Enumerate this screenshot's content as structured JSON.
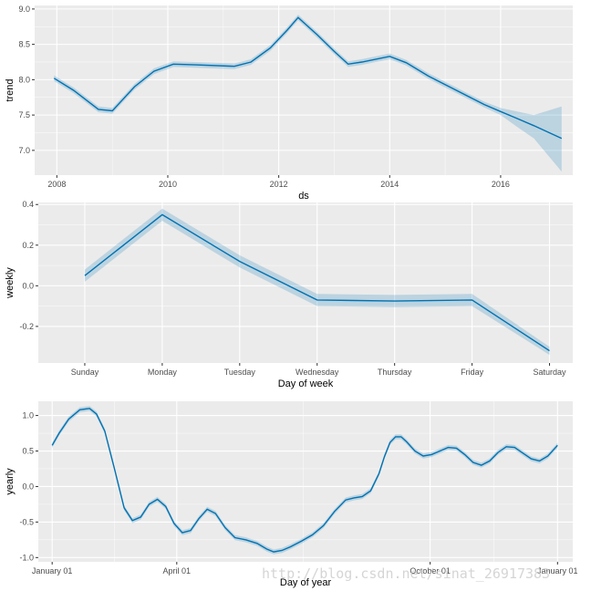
{
  "colors": {
    "panel": "#ebebeb",
    "grid": "#ffffff",
    "line": "#0072b2",
    "band": "#0072b2"
  },
  "watermark": "http://blog.csdn.net/sinat_26917383",
  "chart_data": [
    {
      "type": "line",
      "ylabel": "trend",
      "xlabel": "ds",
      "xlim": [
        2007.6,
        2017.3
      ],
      "ylim": [
        6.65,
        9.05
      ],
      "xticks": [
        2008,
        2010,
        2012,
        2014,
        2016
      ],
      "xtick_labels": [
        "2008",
        "2010",
        "2012",
        "2014",
        "2016"
      ],
      "yticks": [
        7.0,
        7.5,
        8.0,
        8.5,
        9.0
      ],
      "ytick_labels": [
        "7.0",
        "7.5",
        "8.0",
        "8.5",
        "9.0"
      ],
      "x": [
        2007.95,
        2008.3,
        2008.75,
        2009.0,
        2009.4,
        2009.75,
        2010.1,
        2010.5,
        2011.2,
        2011.5,
        2011.85,
        2012.15,
        2012.35,
        2012.7,
        2013.0,
        2013.25,
        2013.5,
        2014.0,
        2014.3,
        2014.7,
        2015.2,
        2015.7,
        2016.0,
        2016.3,
        2016.6,
        2017.1
      ],
      "y": [
        8.02,
        7.85,
        7.58,
        7.56,
        7.9,
        8.12,
        8.22,
        8.21,
        8.19,
        8.25,
        8.45,
        8.7,
        8.88,
        8.63,
        8.4,
        8.22,
        8.25,
        8.33,
        8.24,
        8.05,
        7.85,
        7.65,
        7.55,
        7.45,
        7.35,
        7.17
      ],
      "lower": [
        7.98,
        7.81,
        7.54,
        7.52,
        7.86,
        8.08,
        8.18,
        8.17,
        8.15,
        8.21,
        8.41,
        8.66,
        8.84,
        8.59,
        8.36,
        8.18,
        8.21,
        8.29,
        8.2,
        8.01,
        7.81,
        7.61,
        7.5,
        7.33,
        7.17,
        6.7
      ],
      "upper": [
        8.06,
        7.89,
        7.62,
        7.6,
        7.94,
        8.16,
        8.26,
        8.25,
        8.23,
        8.29,
        8.49,
        8.74,
        8.92,
        8.67,
        8.44,
        8.26,
        8.29,
        8.37,
        8.28,
        8.09,
        7.89,
        7.69,
        7.6,
        7.55,
        7.5,
        7.62
      ]
    },
    {
      "type": "line",
      "ylabel": "weekly",
      "xlabel": "Day of week",
      "categories": [
        "Sunday",
        "Monday",
        "Tuesday",
        "Wednesday",
        "Thursday",
        "Friday",
        "Saturday"
      ],
      "xlim": [
        -0.6,
        6.3
      ],
      "ylim": [
        -0.38,
        0.41
      ],
      "yticks": [
        -0.2,
        0.0,
        0.2,
        0.4
      ],
      "ytick_labels": [
        "-0.2",
        "0.0",
        "0.2",
        "0.4"
      ],
      "x": [
        0,
        1,
        2,
        3,
        4,
        5,
        6
      ],
      "y": [
        0.05,
        0.35,
        0.12,
        -0.07,
        -0.075,
        -0.07,
        -0.32
      ],
      "lower": [
        0.02,
        0.32,
        0.09,
        -0.1,
        -0.105,
        -0.1,
        -0.34
      ],
      "upper": [
        0.08,
        0.38,
        0.15,
        -0.04,
        -0.045,
        -0.04,
        -0.3
      ]
    },
    {
      "type": "line",
      "ylabel": "yearly",
      "xlabel": "Day of year",
      "xlim": [
        -10,
        376
      ],
      "ylim": [
        -1.06,
        1.2
      ],
      "xticks": [
        0,
        90,
        273,
        365
      ],
      "xtick_labels": [
        "January 01",
        "April 01",
        "October 01",
        "January 01"
      ],
      "yticks": [
        -1.0,
        -0.5,
        0.0,
        0.5,
        1.0
      ],
      "ytick_labels": [
        "-1.0",
        "-0.5",
        "0.0",
        "0.5",
        "1.0"
      ],
      "x": [
        0,
        5,
        12,
        20,
        27,
        32,
        38,
        45,
        52,
        58,
        64,
        70,
        76,
        82,
        88,
        94,
        100,
        106,
        112,
        118,
        125,
        132,
        140,
        148,
        155,
        160,
        166,
        172,
        180,
        188,
        196,
        204,
        212,
        218,
        224,
        230,
        236,
        240,
        244,
        248,
        252,
        256,
        262,
        268,
        274,
        280,
        286,
        292,
        298,
        304,
        310,
        316,
        322,
        328,
        334,
        340,
        346,
        352,
        358,
        365
      ],
      "y": [
        0.58,
        0.75,
        0.95,
        1.08,
        1.1,
        1.02,
        0.78,
        0.25,
        -0.3,
        -0.48,
        -0.43,
        -0.25,
        -0.18,
        -0.28,
        -0.52,
        -0.65,
        -0.62,
        -0.45,
        -0.32,
        -0.38,
        -0.58,
        -0.72,
        -0.75,
        -0.8,
        -0.88,
        -0.92,
        -0.9,
        -0.85,
        -0.77,
        -0.68,
        -0.55,
        -0.35,
        -0.19,
        -0.16,
        -0.14,
        -0.06,
        0.18,
        0.42,
        0.62,
        0.7,
        0.7,
        0.63,
        0.5,
        0.43,
        0.45,
        0.5,
        0.55,
        0.54,
        0.45,
        0.34,
        0.3,
        0.36,
        0.48,
        0.56,
        0.55,
        0.47,
        0.39,
        0.36,
        0.43,
        0.58
      ],
      "band_halfwidth": 0.035
    }
  ]
}
